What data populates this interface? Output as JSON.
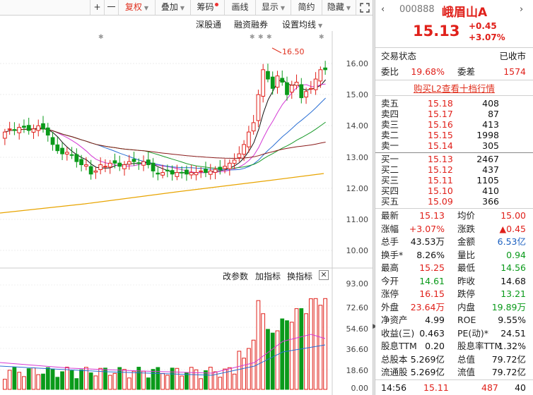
{
  "toolbar": {
    "plus": "+",
    "minus": "一",
    "fuquan": "复权",
    "diejia": "叠加",
    "chouma": "筹码",
    "huaxian": "画线",
    "xianshi": "显示",
    "jianyue": "简约",
    "yincang": "隐藏"
  },
  "chart_header": {
    "shengutong": "深股通",
    "rongzi": "融资融券",
    "setting": "设置均线",
    "peak_label": "16.50"
  },
  "price_axis": [
    "16.00",
    "15.00",
    "14.00",
    "13.00",
    "12.00",
    "11.00",
    "10.00"
  ],
  "volume_header": {
    "params": "改参数",
    "add": "加指标",
    "switch": "换指标"
  },
  "volume_axis": [
    "93.00",
    "72.60",
    "54.60",
    "36.60",
    "18.60",
    "0.00"
  ],
  "colors": {
    "up": "#e0201a",
    "down": "#0a9a1a",
    "accent": "#e0301e",
    "link": "#1a5fc0"
  },
  "stock": {
    "code": "000888",
    "name": "峨眉山A",
    "price": "15.13",
    "change": "+0.45",
    "change_pct": "+3.07%"
  },
  "status": {
    "label": "交易状态",
    "value": "已收市"
  },
  "weibi": {
    "label": "委比",
    "value": "19.68%",
    "label2": "委差",
    "value2": "1574"
  },
  "l2_link": "购买L2查看十档行情",
  "sell": [
    {
      "label": "卖五",
      "price": "15.18",
      "vol": "408"
    },
    {
      "label": "卖四",
      "price": "15.17",
      "vol": "87"
    },
    {
      "label": "卖三",
      "price": "15.16",
      "vol": "413"
    },
    {
      "label": "卖二",
      "price": "15.15",
      "vol": "1998"
    },
    {
      "label": "卖一",
      "price": "15.14",
      "vol": "305"
    }
  ],
  "buy": [
    {
      "label": "买一",
      "price": "15.13",
      "vol": "2467"
    },
    {
      "label": "买二",
      "price": "15.12",
      "vol": "437"
    },
    {
      "label": "买三",
      "price": "15.11",
      "vol": "1105"
    },
    {
      "label": "买四",
      "price": "15.10",
      "vol": "410"
    },
    {
      "label": "买五",
      "price": "15.09",
      "vol": "366"
    }
  ],
  "stats": [
    {
      "l1": "最新",
      "v1": "15.13",
      "c1": "red",
      "l2": "均价",
      "v2": "15.00",
      "c2": "red"
    },
    {
      "l1": "涨幅",
      "v1": "+3.07%",
      "c1": "red",
      "l2": "涨跌",
      "v2": "▲0.45",
      "c2": "red"
    },
    {
      "l1": "总手",
      "v1": "43.53万",
      "c1": "dk",
      "l2": "金额",
      "v2": "6.53亿",
      "c2": "blue"
    },
    {
      "l1": "换手*",
      "v1": "8.26%",
      "c1": "dk",
      "l2": "量比",
      "v2": "0.94",
      "c2": "green"
    },
    {
      "l1": "最高",
      "v1": "15.25",
      "c1": "red",
      "l2": "最低",
      "v2": "14.56",
      "c2": "green"
    },
    {
      "l1": "今开",
      "v1": "14.61",
      "c1": "green",
      "l2": "昨收",
      "v2": "14.68",
      "c2": "dk"
    },
    {
      "l1": "涨停",
      "v1": "16.15",
      "c1": "red",
      "l2": "跌停",
      "v2": "13.21",
      "c2": "green"
    },
    {
      "l1": "外盘",
      "v1": "23.64万",
      "c1": "red",
      "l2": "内盘",
      "v2": "19.89万",
      "c2": "green"
    },
    {
      "l1": "净资产",
      "v1": "4.99",
      "c1": "dk",
      "l2": "ROE",
      "v2": "9.55%",
      "c2": "dk"
    },
    {
      "l1": "收益(三)",
      "v1": "0.463",
      "c1": "dk",
      "l2": "PE(动)*",
      "v2": "24.51",
      "c2": "dk"
    },
    {
      "l1": "股息TTM",
      "v1": "0.20",
      "c1": "dk",
      "l2": "股息率TTM",
      "v2": "1.32%",
      "c2": "dk"
    },
    {
      "l1": "总股本",
      "v1": "5.269亿",
      "c1": "dk",
      "l2": "总值",
      "v2": "79.72亿",
      "c2": "dk"
    },
    {
      "l1": "流通股",
      "v1": "5.269亿",
      "c1": "dk",
      "l2": "流值",
      "v2": "79.72亿",
      "c2": "dk"
    }
  ],
  "tick": {
    "time": "14:56",
    "price": "15.11",
    "vol": "487",
    "num": "40"
  }
}
